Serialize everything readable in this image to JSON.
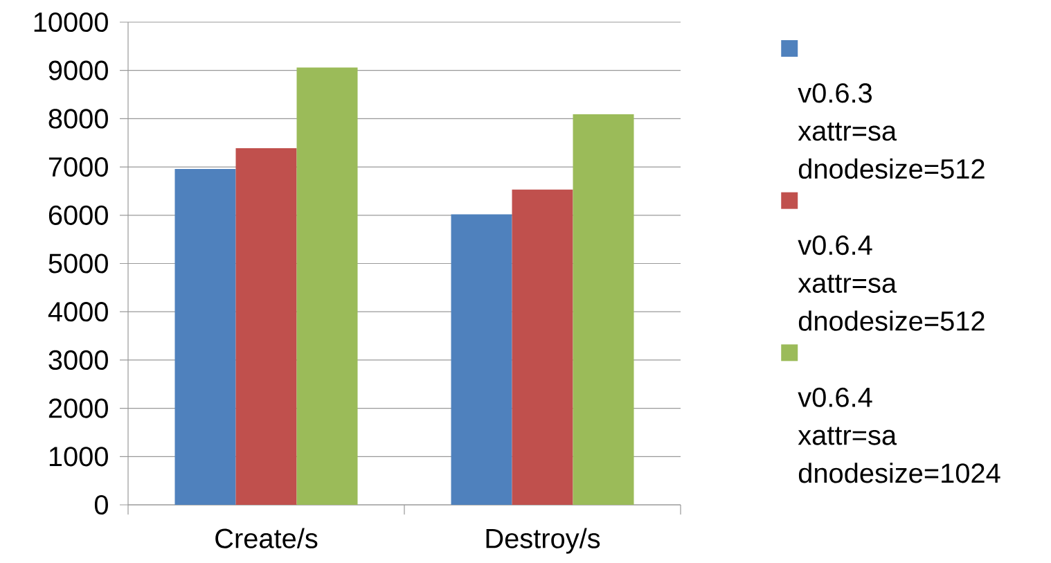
{
  "chart_data": {
    "type": "bar",
    "categories": [
      "Create/s",
      "Destroy/s"
    ],
    "series": [
      {
        "name": "v0.6.3 xattr=sa dnodesize=512",
        "color": "#4f81bd",
        "values": [
          6960,
          6020
        ]
      },
      {
        "name": "v0.6.4 xattr=sa dnodesize=512",
        "color": "#c0504d",
        "values": [
          7390,
          6530
        ]
      },
      {
        "name": "v0.6.4 xattr=sa dnodesize=1024",
        "color": "#9bbb59",
        "values": [
          9060,
          8090
        ]
      }
    ],
    "ylim": [
      0,
      10000
    ],
    "yticks": [
      0,
      1000,
      2000,
      3000,
      4000,
      5000,
      6000,
      7000,
      8000,
      9000,
      10000
    ],
    "grid": "y",
    "legend": "right"
  }
}
